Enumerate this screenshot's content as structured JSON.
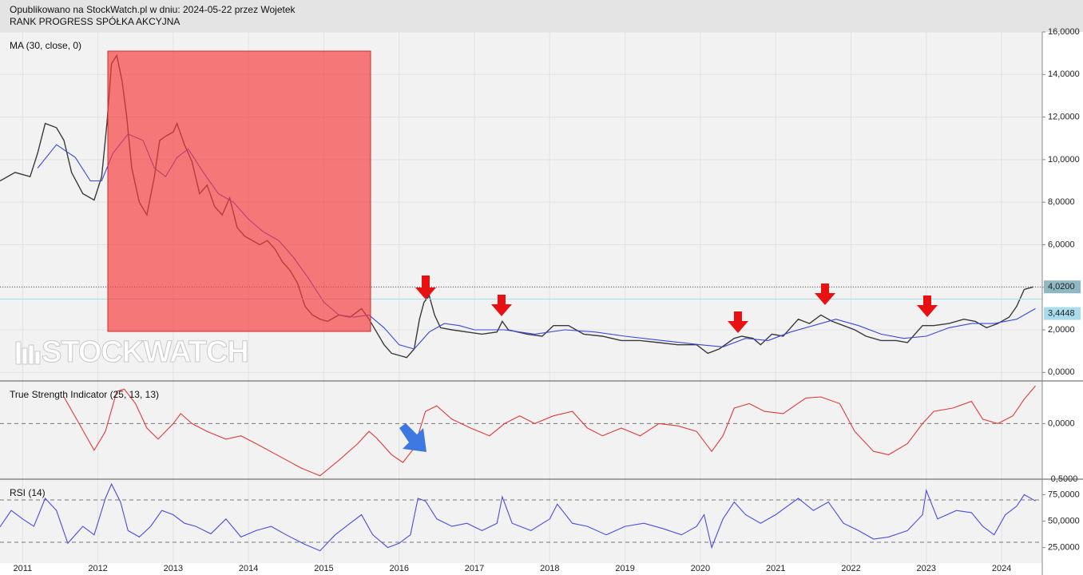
{
  "header": {
    "published": "Opublikowano na StockWatch.pl w dniu: 2024-05-22 przez Wojetek",
    "company": "RANK PROGRESS SPÓŁKA AKCYJNA",
    "watermark": "STOCKWATCH"
  },
  "chart_data": [
    {
      "type": "line",
      "title": "MA (30, close, 0)",
      "xlim": [
        2010.7,
        2024.54
      ],
      "ylim": [
        -0.4,
        16.0
      ],
      "yticks": [
        {
          "value": 0,
          "label": "0,0000"
        },
        {
          "value": 2,
          "label": "2,0000"
        },
        {
          "value": 4,
          "label": "4,0000"
        },
        {
          "value": 6,
          "label": "6,0000"
        },
        {
          "value": 8,
          "label": "8,0000"
        },
        {
          "value": 10,
          "label": "10,0000"
        },
        {
          "value": 12,
          "label": "12,0000"
        },
        {
          "value": 14,
          "label": "14,0000"
        },
        {
          "value": 16,
          "label": "16,0000"
        }
      ],
      "grid": true,
      "markers": [
        {
          "value": 4.02,
          "label": "4,0200",
          "color": "#8fb8c4",
          "line": "dotted"
        },
        {
          "value": 3.4448,
          "label": "3,4448",
          "color": "#a8dcec",
          "line": "solid"
        }
      ],
      "series": [
        {
          "color": "#3a3a3a",
          "x": [
            2010.7,
            2010.9,
            2011.1,
            2011.2,
            2011.3,
            2011.45,
            2011.55,
            2011.65,
            2011.8,
            2011.95,
            2012.05,
            2012.12,
            2012.18,
            2012.25,
            2012.32,
            2012.38,
            2012.45,
            2012.55,
            2012.65,
            2012.75,
            2012.82,
            2012.9,
            2013.0,
            2013.05,
            2013.15,
            2013.25,
            2013.35,
            2013.45,
            2013.55,
            2013.65,
            2013.75,
            2013.85,
            2013.95,
            2014.05,
            2014.15,
            2014.25,
            2014.35,
            2014.45,
            2014.55,
            2014.65,
            2014.75,
            2014.85,
            2014.95,
            2015.05,
            2015.2,
            2015.35,
            2015.5,
            2015.6,
            2015.7,
            2015.8,
            2015.9,
            2016.0,
            2016.1,
            2016.2,
            2016.27,
            2016.33,
            2016.4,
            2016.47,
            2016.55,
            2016.7,
            2016.9,
            2017.1,
            2017.3,
            2017.37,
            2017.45,
            2017.7,
            2017.9,
            2018.05,
            2018.25,
            2018.45,
            2018.7,
            2018.95,
            2019.2,
            2019.45,
            2019.7,
            2019.95,
            2020.1,
            2020.25,
            2020.45,
            2020.55,
            2020.7,
            2020.8,
            2020.95,
            2021.1,
            2021.3,
            2021.45,
            2021.6,
            2021.75,
            2021.9,
            2022.05,
            2022.2,
            2022.4,
            2022.6,
            2022.75,
            2022.95,
            2023.1,
            2023.3,
            2023.5,
            2023.65,
            2023.8,
            2023.95,
            2024.1,
            2024.2,
            2024.3,
            2024.4,
            2024.42
          ],
          "values": [
            9.0,
            9.4,
            9.2,
            10.3,
            11.7,
            11.5,
            10.9,
            9.4,
            8.4,
            8.1,
            9.2,
            11.7,
            14.5,
            14.9,
            13.7,
            12.1,
            9.6,
            8.0,
            7.4,
            9.2,
            10.9,
            11.1,
            11.3,
            11.7,
            10.7,
            9.9,
            8.4,
            8.8,
            7.8,
            7.4,
            8.2,
            6.8,
            6.4,
            6.2,
            6.0,
            6.2,
            5.8,
            5.2,
            4.8,
            4.2,
            3.1,
            2.7,
            2.5,
            2.4,
            2.7,
            2.6,
            3.0,
            2.5,
            1.9,
            1.3,
            0.9,
            0.8,
            0.7,
            1.1,
            2.5,
            3.3,
            3.6,
            2.7,
            2.1,
            2.0,
            1.9,
            1.8,
            1.9,
            2.4,
            2.0,
            1.8,
            1.7,
            2.2,
            2.2,
            1.8,
            1.7,
            1.5,
            1.5,
            1.4,
            1.3,
            1.3,
            0.9,
            1.1,
            1.6,
            1.7,
            1.6,
            1.3,
            1.8,
            1.7,
            2.5,
            2.3,
            2.7,
            2.4,
            2.2,
            2.0,
            1.7,
            1.5,
            1.5,
            1.4,
            2.2,
            2.2,
            2.3,
            2.5,
            2.4,
            2.1,
            2.3,
            2.6,
            3.1,
            3.9,
            4.0,
            4.02
          ]
        },
        {
          "color": "#3848d8",
          "x": [
            2011.2,
            2011.45,
            2011.7,
            2011.9,
            2012.05,
            2012.2,
            2012.4,
            2012.6,
            2012.75,
            2012.9,
            2013.05,
            2013.2,
            2013.4,
            2013.6,
            2013.8,
            2014.0,
            2014.2,
            2014.4,
            2014.6,
            2014.8,
            2015.0,
            2015.2,
            2015.4,
            2015.6,
            2015.8,
            2016.0,
            2016.2,
            2016.4,
            2016.6,
            2016.8,
            2017.0,
            2017.4,
            2017.8,
            2018.2,
            2018.6,
            2019.0,
            2019.5,
            2020.0,
            2020.3,
            2020.6,
            2020.9,
            2021.2,
            2021.5,
            2021.8,
            2022.1,
            2022.4,
            2022.7,
            2023.0,
            2023.3,
            2023.6,
            2023.9,
            2024.2,
            2024.45
          ],
          "values": [
            9.6,
            10.7,
            10.1,
            9.0,
            9.0,
            10.3,
            11.2,
            10.9,
            9.6,
            9.2,
            10.1,
            10.5,
            9.4,
            8.4,
            8.0,
            7.2,
            6.6,
            6.2,
            5.4,
            4.4,
            3.3,
            2.7,
            2.6,
            2.7,
            2.1,
            1.3,
            1.1,
            1.9,
            2.3,
            2.2,
            2.0,
            2.0,
            1.8,
            2.0,
            1.9,
            1.7,
            1.5,
            1.3,
            1.2,
            1.6,
            1.5,
            1.9,
            2.2,
            2.5,
            2.2,
            1.8,
            1.6,
            1.7,
            2.1,
            2.3,
            2.3,
            2.5,
            3.0
          ]
        }
      ]
    },
    {
      "type": "line",
      "title": "True Strength Indicator (25, 13, 13)",
      "xlim": [
        2010.7,
        2024.54
      ],
      "ylim": [
        -0.5,
        0.384
      ],
      "yticks": [
        {
          "value": 0,
          "label": "0,0000"
        },
        {
          "value": -0.5,
          "label": "-0,5000"
        }
      ],
      "levels": [
        0
      ],
      "series": [
        {
          "color": "#e03a3a",
          "x": [
            2011.55,
            2011.75,
            2011.95,
            2012.1,
            2012.25,
            2012.35,
            2012.5,
            2012.65,
            2012.8,
            2013.0,
            2013.1,
            2013.25,
            2013.45,
            2013.7,
            2013.9,
            2014.1,
            2014.4,
            2014.7,
            2014.95,
            2015.2,
            2015.45,
            2015.6,
            2015.7,
            2015.9,
            2016.05,
            2016.2,
            2016.35,
            2016.5,
            2016.7,
            2016.95,
            2017.2,
            2017.4,
            2017.6,
            2017.8,
            2018.05,
            2018.3,
            2018.5,
            2018.7,
            2018.95,
            2019.2,
            2019.45,
            2019.7,
            2019.95,
            2020.15,
            2020.3,
            2020.45,
            2020.65,
            2020.85,
            2021.1,
            2021.4,
            2021.6,
            2021.85,
            2022.05,
            2022.3,
            2022.5,
            2022.75,
            2022.95,
            2023.1,
            2023.35,
            2023.6,
            2023.75,
            2023.95,
            2024.15,
            2024.3,
            2024.45
          ],
          "values": [
            0.24,
            0,
            -0.24,
            -0.07,
            0.29,
            0.31,
            0.18,
            -0.04,
            -0.14,
            0,
            0.09,
            0,
            -0.07,
            -0.14,
            -0.11,
            -0.18,
            -0.29,
            -0.4,
            -0.47,
            -0.33,
            -0.18,
            -0.07,
            -0.13,
            -0.28,
            -0.35,
            -0.22,
            0.11,
            0.16,
            0.04,
            -0.04,
            -0.11,
            0,
            0.07,
            0,
            0.07,
            0.11,
            -0.04,
            -0.11,
            -0.04,
            -0.11,
            0,
            -0.02,
            -0.07,
            -0.25,
            -0.11,
            0.14,
            0.18,
            0.11,
            0.09,
            0.23,
            0.24,
            0.18,
            -0.07,
            -0.25,
            -0.28,
            -0.18,
            0,
            0.11,
            0.14,
            0.2,
            0.04,
            0,
            0.07,
            0.22,
            0.34
          ]
        }
      ]
    },
    {
      "type": "line",
      "title": "RSI (14)",
      "xlim": [
        2010.7,
        2024.54
      ],
      "ylim": [
        10.4,
        89.6
      ],
      "yticks": [
        {
          "value": 25,
          "label": "25,0000"
        },
        {
          "value": 50,
          "label": "50,0000"
        },
        {
          "value": 75,
          "label": "75,0000"
        }
      ],
      "xticks": [
        2011,
        2012,
        2013,
        2014,
        2015,
        2016,
        2017,
        2018,
        2019,
        2020,
        2021,
        2022,
        2023,
        2024
      ],
      "levels": [
        30,
        70
      ],
      "series": [
        {
          "color": "#4c4ce0",
          "x": [
            2010.7,
            2010.85,
            2011.0,
            2011.15,
            2011.3,
            2011.45,
            2011.6,
            2011.8,
            2011.95,
            2012.1,
            2012.18,
            2012.3,
            2012.4,
            2012.55,
            2012.7,
            2012.85,
            2013.0,
            2013.15,
            2013.3,
            2013.5,
            2013.7,
            2013.9,
            2014.1,
            2014.3,
            2014.5,
            2014.75,
            2014.95,
            2015.15,
            2015.35,
            2015.5,
            2015.65,
            2015.85,
            2016.0,
            2016.15,
            2016.25,
            2016.35,
            2016.5,
            2016.7,
            2016.9,
            2017.1,
            2017.3,
            2017.37,
            2017.5,
            2017.75,
            2018.0,
            2018.1,
            2018.3,
            2018.5,
            2018.75,
            2019.0,
            2019.25,
            2019.5,
            2019.75,
            2019.95,
            2020.05,
            2020.15,
            2020.3,
            2020.45,
            2020.6,
            2020.8,
            2021.0,
            2021.3,
            2021.5,
            2021.7,
            2021.9,
            2022.1,
            2022.3,
            2022.5,
            2022.75,
            2022.95,
            2023.0,
            2023.15,
            2023.4,
            2023.6,
            2023.75,
            2023.9,
            2024.05,
            2024.2,
            2024.3,
            2024.45
          ],
          "values": [
            44.6,
            60,
            52,
            45,
            71.5,
            60,
            29,
            45,
            37,
            71.5,
            85,
            68,
            41,
            35,
            45,
            60,
            56,
            48,
            45,
            38,
            52,
            35,
            41,
            45,
            37,
            28,
            22,
            37,
            48,
            56,
            37,
            25,
            29,
            37,
            71.5,
            69,
            52,
            45,
            48,
            41,
            48,
            73,
            48,
            41,
            52,
            66,
            48,
            45,
            37,
            45,
            48,
            43,
            37,
            45,
            56,
            25,
            52,
            68,
            56,
            48,
            56,
            71.5,
            60,
            68,
            48,
            41,
            33,
            35,
            41,
            56,
            79,
            52,
            60,
            58,
            45,
            37,
            56,
            64,
            75,
            69
          ]
        }
      ]
    }
  ]
}
